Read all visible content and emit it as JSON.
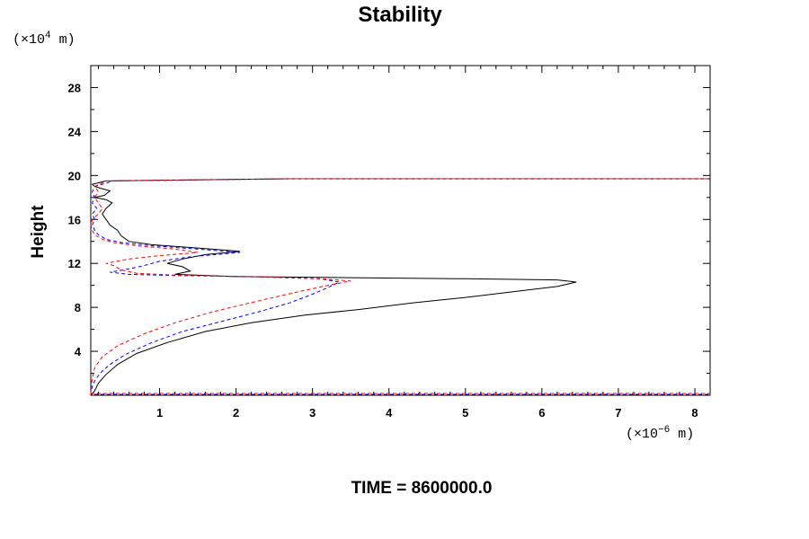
{
  "chart_data": {
    "type": "line",
    "title": "Stability",
    "ylabel": "Height",
    "xlabel": "",
    "y_unit": "(×10",
    "y_unit_exp": "4",
    "y_unit_tail": " m)",
    "x_unit": "(×10",
    "x_unit_exp": "−6",
    "x_unit_tail": " m)",
    "footer": "TIME = 8600000.0",
    "xlim": [
      0.1,
      8.2
    ],
    "ylim": [
      0,
      30
    ],
    "x_ticks": [
      1,
      2,
      3,
      4,
      5,
      6,
      7,
      8
    ],
    "y_ticks": [
      4,
      8,
      12,
      16,
      20,
      24,
      28
    ],
    "grid": false,
    "series": [
      {
        "color": "#000000",
        "style": "solid",
        "points": [
          [
            0.1,
            0
          ],
          [
            0.1,
            0
          ],
          [
            0.15,
            0.4
          ],
          [
            0.2,
            1.1
          ],
          [
            0.3,
            1.9
          ],
          [
            0.45,
            2.8
          ],
          [
            0.7,
            3.8
          ],
          [
            1.1,
            4.8
          ],
          [
            1.6,
            5.8
          ],
          [
            2.2,
            6.6
          ],
          [
            2.9,
            7.3
          ],
          [
            3.6,
            7.8
          ],
          [
            4.3,
            8.4
          ],
          [
            5.0,
            8.9
          ],
          [
            5.6,
            9.4
          ],
          [
            6.2,
            9.9
          ],
          [
            6.45,
            10.3
          ],
          [
            6.2,
            10.5
          ],
          [
            5.0,
            10.6
          ],
          [
            3.5,
            10.7
          ],
          [
            2.0,
            10.8
          ],
          [
            1.2,
            11.0
          ],
          [
            1.4,
            11.3
          ],
          [
            1.3,
            11.7
          ],
          [
            1.1,
            12.0
          ],
          [
            1.3,
            12.4
          ],
          [
            1.6,
            12.8
          ],
          [
            2.05,
            13.1
          ],
          [
            1.5,
            13.4
          ],
          [
            0.9,
            13.7
          ],
          [
            0.6,
            14.0
          ],
          [
            0.5,
            14.5
          ],
          [
            0.45,
            15.0
          ],
          [
            0.35,
            15.5
          ],
          [
            0.3,
            16.0
          ],
          [
            0.25,
            16.5
          ],
          [
            0.3,
            17.0
          ],
          [
            0.38,
            17.5
          ],
          [
            0.3,
            17.8
          ],
          [
            0.15,
            18.0
          ],
          [
            0.28,
            18.2
          ],
          [
            0.35,
            18.6
          ],
          [
            0.15,
            19.0
          ],
          [
            0.12,
            19.2
          ],
          [
            0.3,
            19.5
          ],
          [
            2.7,
            19.7
          ],
          [
            8.2,
            19.7
          ]
        ]
      },
      {
        "color": "#0000ff",
        "style": "dashed",
        "points": [
          [
            0.1,
            0
          ],
          [
            0.1,
            0.3
          ],
          [
            0.12,
            0.8
          ],
          [
            0.15,
            1.3
          ],
          [
            0.22,
            2.0
          ],
          [
            0.35,
            2.8
          ],
          [
            0.55,
            3.7
          ],
          [
            0.9,
            4.8
          ],
          [
            1.3,
            5.8
          ],
          [
            1.8,
            6.7
          ],
          [
            2.3,
            7.6
          ],
          [
            2.7,
            8.4
          ],
          [
            3.0,
            9.2
          ],
          [
            3.2,
            9.8
          ],
          [
            3.35,
            10.3
          ],
          [
            3.1,
            10.6
          ],
          [
            2.2,
            10.8
          ],
          [
            1.2,
            10.9
          ],
          [
            0.6,
            11.0
          ],
          [
            0.35,
            11.2
          ],
          [
            0.6,
            11.5
          ],
          [
            0.8,
            11.8
          ],
          [
            1.0,
            12.2
          ],
          [
            1.4,
            12.6
          ],
          [
            2.05,
            13.0
          ],
          [
            1.5,
            13.3
          ],
          [
            0.9,
            13.6
          ],
          [
            0.5,
            13.9
          ],
          [
            0.3,
            14.2
          ],
          [
            0.2,
            14.6
          ],
          [
            0.15,
            15.0
          ],
          [
            0.12,
            15.5
          ],
          [
            0.15,
            16.0
          ],
          [
            0.12,
            16.5
          ],
          [
            0.18,
            17.0
          ],
          [
            0.12,
            17.5
          ],
          [
            0.15,
            18.0
          ],
          [
            0.12,
            18.5
          ],
          [
            0.15,
            19.0
          ],
          [
            0.4,
            19.5
          ],
          [
            2.7,
            19.7
          ],
          [
            8.2,
            19.7
          ]
        ]
      },
      {
        "color": "#ff0000",
        "style": "dashed",
        "points": [
          [
            0.1,
            0
          ],
          [
            0.1,
            0.5
          ],
          [
            0.12,
            1.5
          ],
          [
            0.15,
            2.5
          ],
          [
            0.25,
            3.5
          ],
          [
            0.45,
            4.5
          ],
          [
            0.8,
            5.6
          ],
          [
            1.2,
            6.6
          ],
          [
            1.7,
            7.6
          ],
          [
            2.3,
            8.6
          ],
          [
            2.8,
            9.4
          ],
          [
            3.2,
            10.0
          ],
          [
            3.5,
            10.4
          ],
          [
            3.1,
            10.6
          ],
          [
            2.2,
            10.8
          ],
          [
            1.3,
            10.9
          ],
          [
            0.7,
            11.1
          ],
          [
            0.5,
            11.4
          ],
          [
            0.4,
            11.8
          ],
          [
            0.3,
            12.0
          ],
          [
            0.6,
            12.4
          ],
          [
            1.0,
            12.7
          ],
          [
            1.5,
            13.0
          ],
          [
            1.2,
            13.3
          ],
          [
            0.7,
            13.6
          ],
          [
            0.4,
            13.9
          ],
          [
            0.25,
            14.2
          ],
          [
            0.15,
            14.6
          ],
          [
            0.12,
            15.0
          ],
          [
            0.1,
            15.5
          ],
          [
            0.12,
            16.0
          ],
          [
            0.2,
            16.5
          ],
          [
            0.25,
            17.0
          ],
          [
            0.2,
            17.5
          ],
          [
            0.15,
            18.0
          ],
          [
            0.2,
            18.5
          ],
          [
            0.15,
            19.0
          ],
          [
            0.3,
            19.5
          ],
          [
            2.7,
            19.7
          ],
          [
            8.2,
            19.7
          ]
        ]
      }
    ]
  }
}
